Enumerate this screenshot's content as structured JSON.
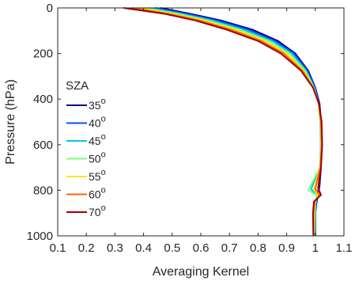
{
  "chart_data": {
    "type": "line",
    "xlabel": "Averaging Kernel",
    "ylabel": "Pressure (hPa)",
    "xlim": [
      0.1,
      1.1
    ],
    "ylim": [
      1000,
      0
    ],
    "y_reversed": true,
    "x_ticks": [
      0.1,
      0.2,
      0.3,
      0.4,
      0.5,
      0.6,
      0.7,
      0.8,
      0.9,
      1,
      1.1
    ],
    "x_tick_labels": [
      "0.1",
      "0.2",
      "0.3",
      "0.4",
      "0.5",
      "0.6",
      "0.7",
      "0.8",
      "0.9",
      "1",
      "1.1"
    ],
    "y_ticks": [
      0,
      200,
      400,
      600,
      800,
      1000
    ],
    "y_tick_labels": [
      "0",
      "200",
      "400",
      "600",
      "800",
      "1000"
    ],
    "grid": false,
    "legend": {
      "title": "SZA",
      "placement": "center-left"
    },
    "series": [
      {
        "name": "35",
        "color": "#00008f",
        "x": [
          0.46,
          0.56,
          0.67,
          0.78,
          0.87,
          0.93,
          0.975,
          1.0,
          1.015,
          1.02,
          1.02,
          1.02,
          1.015,
          1.01,
          1.005,
          1.0,
          1.0
        ],
        "y": [
          0,
          25,
          55,
          95,
          145,
          200,
          275,
          350,
          420,
          500,
          600,
          700,
          780,
          820,
          850,
          900,
          1000
        ]
      },
      {
        "name": "40",
        "color": "#0050ff",
        "x": [
          0.44,
          0.545,
          0.655,
          0.765,
          0.86,
          0.925,
          0.972,
          0.998,
          1.013,
          1.018,
          1.02,
          1.018,
          1.012,
          1.008,
          1.004,
          1.0,
          1.0
        ],
        "y": [
          0,
          25,
          55,
          95,
          145,
          200,
          275,
          350,
          420,
          500,
          600,
          700,
          780,
          820,
          850,
          900,
          1000
        ]
      },
      {
        "name": "45",
        "color": "#00c8e6",
        "x": [
          0.42,
          0.53,
          0.64,
          0.75,
          0.85,
          0.918,
          0.968,
          0.996,
          1.012,
          1.017,
          1.019,
          1.016,
          0.985,
          1.005,
          1.002,
          0.999,
          0.998
        ],
        "y": [
          0,
          25,
          55,
          95,
          145,
          200,
          275,
          350,
          420,
          500,
          600,
          700,
          795,
          820,
          850,
          900,
          1000
        ]
      },
      {
        "name": "50",
        "color": "#7dff7d",
        "x": [
          0.4,
          0.515,
          0.625,
          0.735,
          0.838,
          0.91,
          0.964,
          0.995,
          1.012,
          1.018,
          1.02,
          1.016,
          0.975,
          1.005,
          1.0,
          0.998,
          0.997
        ],
        "y": [
          0,
          25,
          55,
          95,
          145,
          200,
          275,
          350,
          420,
          500,
          600,
          700,
          800,
          820,
          850,
          900,
          1000
        ]
      },
      {
        "name": "55",
        "color": "#ffe600",
        "x": [
          0.38,
          0.5,
          0.61,
          0.72,
          0.826,
          0.9,
          0.96,
          0.994,
          1.012,
          1.019,
          1.021,
          1.017,
          0.995,
          1.01,
          1.0,
          0.996,
          0.995
        ],
        "y": [
          0,
          25,
          55,
          95,
          145,
          200,
          275,
          350,
          420,
          500,
          600,
          700,
          795,
          820,
          850,
          900,
          1000
        ]
      },
      {
        "name": "60",
        "color": "#ff6400",
        "x": [
          0.36,
          0.485,
          0.595,
          0.705,
          0.812,
          0.89,
          0.955,
          0.993,
          1.012,
          1.02,
          1.022,
          1.018,
          1.0,
          1.015,
          0.998,
          0.994,
          0.994
        ],
        "y": [
          0,
          25,
          55,
          95,
          145,
          200,
          275,
          350,
          420,
          500,
          600,
          700,
          795,
          820,
          850,
          900,
          1000
        ]
      },
      {
        "name": "70",
        "color": "#a00000",
        "x": [
          0.33,
          0.47,
          0.58,
          0.69,
          0.8,
          0.88,
          0.95,
          0.992,
          1.013,
          1.022,
          1.024,
          1.02,
          1.01,
          1.02,
          0.995,
          0.992,
          0.993
        ],
        "y": [
          0,
          25,
          55,
          95,
          145,
          200,
          275,
          350,
          420,
          500,
          600,
          700,
          790,
          820,
          850,
          900,
          1000
        ]
      }
    ]
  }
}
